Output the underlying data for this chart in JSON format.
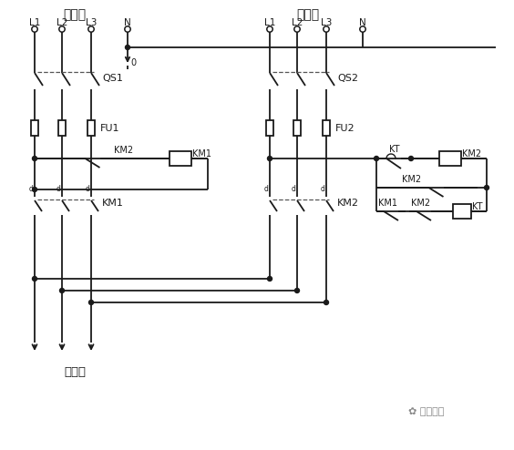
{
  "bg_color": "#ffffff",
  "line_color": "#1a1a1a",
  "dashed_color": "#555555",
  "left_power_label": "甲电源",
  "right_power_label": "乙电源",
  "load_label": "接负载",
  "watermark": "技成培训",
  "phases_left": [
    "L1",
    "L2",
    "L3",
    "N"
  ],
  "phases_right": [
    "L1",
    "L2",
    "L3",
    "N"
  ],
  "qs1_label": "QS1",
  "qs2_label": "QS2",
  "fu1_label": "FU1",
  "fu2_label": "FU2",
  "km1_label": "KM1",
  "km2_label": "KM2",
  "kt_label": "KT",
  "zero_label": "0",
  "figsize": [
    5.64,
    4.94
  ],
  "dpi": 100
}
